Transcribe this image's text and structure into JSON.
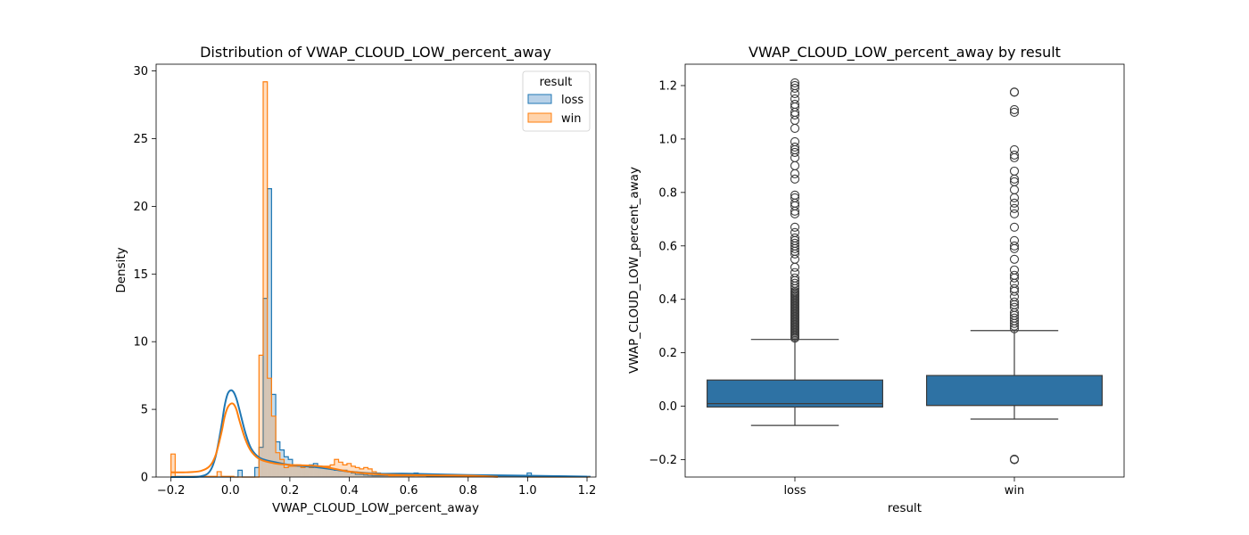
{
  "chart_data": [
    {
      "type": "histogram",
      "title": "Distribution of VWAP_CLOUD_LOW_percent_away",
      "xlabel": "VWAP_CLOUD_LOW_percent_away",
      "ylabel": "Density",
      "xlim": [
        -0.25,
        1.23
      ],
      "ylim": [
        0,
        30.5
      ],
      "xticks": [
        -0.2,
        0.0,
        0.2,
        0.4,
        0.6,
        0.8,
        1.0,
        1.2
      ],
      "xtick_labels": [
        "−0.2",
        "0.0",
        "0.2",
        "0.4",
        "0.6",
        "0.8",
        "1.0",
        "1.2"
      ],
      "yticks": [
        0,
        5,
        10,
        15,
        20,
        25,
        30
      ],
      "ytick_labels": [
        "0",
        "5",
        "10",
        "15",
        "20",
        "25",
        "30"
      ],
      "legend": {
        "title": "result",
        "placement": "upper-right",
        "entries": [
          "loss",
          "win"
        ]
      },
      "bin_width": 0.0141,
      "bin_start": -0.2,
      "series": [
        {
          "name": "loss",
          "color": "#1f77b4",
          "fill": "#b8d1e8",
          "density": [
            0,
            0,
            0,
            0,
            0,
            0,
            0,
            0,
            0,
            0,
            0,
            0,
            0,
            0,
            0,
            0,
            0.5,
            0,
            0,
            0,
            0.7,
            2.2,
            13.2,
            21.3,
            6.1,
            2.6,
            2.0,
            1.5,
            1.3,
            0.8,
            0.8,
            0.8,
            0.8,
            0.9,
            1.0,
            0.8,
            0.7,
            0.7,
            0.6,
            0.5,
            0.5,
            0.5,
            0.4,
            0.3,
            0.2,
            0.2,
            0.15,
            0.12,
            0.1,
            0.1,
            0.1,
            0.1,
            0.1,
            0.1,
            0.1,
            0.1,
            0.1,
            0.1,
            0.3,
            0.1,
            0.1,
            0.05,
            0.05,
            0.05,
            0.05,
            0.05,
            0.05,
            0.05,
            0.05,
            0.05,
            0.05,
            0.05,
            0.05,
            0.05,
            0.05,
            0.05,
            0.05,
            0.05,
            0.05,
            0.05,
            0.05,
            0.05,
            0.05,
            0.05,
            0.05,
            0.3,
            0.05,
            0.05,
            0.05,
            0.05,
            0.05,
            0.05,
            0.05,
            0.05,
            0.05,
            0.05,
            0.05,
            0.05,
            0.05,
            0.05
          ],
          "kde": {
            "x": [
              -0.2,
              -0.15,
              -0.1,
              -0.07,
              -0.05,
              -0.03,
              -0.02,
              -0.01,
              0.0,
              0.01,
              0.02,
              0.03,
              0.05,
              0.07,
              0.1,
              0.15,
              0.2,
              0.3,
              0.4,
              0.5,
              0.6,
              0.8,
              1.0,
              1.2
            ],
            "y": [
              0,
              0,
              0.05,
              0.4,
              1.5,
              3.8,
              5.2,
              6.1,
              6.4,
              6.3,
              5.8,
              5.0,
              3.3,
              2.1,
              1.4,
              1.1,
              0.9,
              0.7,
              0.4,
              0.25,
              0.25,
              0.15,
              0.1,
              0.03
            ]
          }
        },
        {
          "name": "win",
          "color": "#ff7f0e",
          "fill": "#ffd3ab",
          "density": [
            1.7,
            0.05,
            0.05,
            0.05,
            0.05,
            0.05,
            0.05,
            0.05,
            0.05,
            0.05,
            0.05,
            0.4,
            0.05,
            0.05,
            0.05,
            0,
            0,
            0,
            0,
            0,
            0,
            9.0,
            29.2,
            7.3,
            4.5,
            1.8,
            1.3,
            0.7,
            0.8,
            0.8,
            0.9,
            0.7,
            0.8,
            0.7,
            0.8,
            0.7,
            0.8,
            0.8,
            0.9,
            1.3,
            1.1,
            0.9,
            1.0,
            0.8,
            0.7,
            0.6,
            0.7,
            0.6,
            0.4,
            0.3,
            0.2,
            0.15,
            0.1,
            0.1,
            0.1,
            0.1,
            0.1,
            0.1,
            0.1,
            0.1,
            0.1,
            0.1,
            0.1,
            0.1,
            0.1,
            0.1,
            0.1,
            0.1,
            0.1,
            0.1,
            0.1,
            0.1,
            0.1,
            0.1,
            0.1,
            0.1,
            0.1,
            0.1,
            0.1,
            0.1,
            0.1,
            0.1,
            0.1,
            0.1,
            0.1,
            0,
            0,
            0,
            0,
            0,
            0,
            0,
            0,
            0,
            0,
            0,
            0,
            0,
            0,
            0
          ],
          "kde": {
            "x": [
              -0.2,
              -0.15,
              -0.1,
              -0.07,
              -0.05,
              -0.03,
              -0.02,
              -0.01,
              0.0,
              0.01,
              0.02,
              0.03,
              0.05,
              0.07,
              0.1,
              0.15,
              0.2,
              0.3,
              0.4,
              0.5,
              0.6,
              0.8,
              0.9
            ],
            "y": [
              0.35,
              0.35,
              0.45,
              0.8,
              1.6,
              3.3,
              4.4,
              5.1,
              5.4,
              5.4,
              5.0,
              4.2,
              2.8,
              1.9,
              1.3,
              1.0,
              0.9,
              0.8,
              0.4,
              0.2,
              0.15,
              0.1,
              0.02
            ]
          }
        }
      ]
    },
    {
      "type": "box",
      "title": "VWAP_CLOUD_LOW_percent_away by result",
      "xlabel": "result",
      "ylabel": "VWAP_CLOUD_LOW_percent_away",
      "categories": [
        "loss",
        "win"
      ],
      "ylim": [
        -0.265,
        1.28
      ],
      "yticks": [
        -0.2,
        0.0,
        0.2,
        0.4,
        0.6,
        0.8,
        1.0,
        1.2
      ],
      "ytick_labels": [
        "−0.2",
        "0.0",
        "0.2",
        "0.4",
        "0.6",
        "0.8",
        "1.0",
        "1.2"
      ],
      "box_color": "#2e72a4",
      "boxes": [
        {
          "name": "loss",
          "q1": -0.003,
          "median": 0.01,
          "q3": 0.098,
          "whisker_low": -0.072,
          "whisker_high": 0.25,
          "outliers": [
            0.255,
            0.26,
            0.265,
            0.27,
            0.275,
            0.28,
            0.285,
            0.29,
            0.295,
            0.3,
            0.305,
            0.31,
            0.315,
            0.32,
            0.325,
            0.33,
            0.335,
            0.34,
            0.345,
            0.35,
            0.355,
            0.36,
            0.365,
            0.37,
            0.375,
            0.38,
            0.385,
            0.39,
            0.395,
            0.4,
            0.405,
            0.41,
            0.415,
            0.42,
            0.425,
            0.43,
            0.44,
            0.45,
            0.46,
            0.47,
            0.48,
            0.5,
            0.52,
            0.55,
            0.57,
            0.58,
            0.59,
            0.6,
            0.61,
            0.62,
            0.63,
            0.65,
            0.67,
            0.72,
            0.73,
            0.75,
            0.76,
            0.78,
            0.79,
            0.85,
            0.87,
            0.9,
            0.93,
            0.95,
            0.96,
            0.97,
            0.99,
            1.04,
            1.07,
            1.09,
            1.1,
            1.12,
            1.13,
            1.15,
            1.17,
            1.19,
            1.2,
            1.21
          ]
        },
        {
          "name": "win",
          "q1": 0.003,
          "median": 0.003,
          "q3": 0.115,
          "whisker_low": -0.048,
          "whisker_high": 0.283,
          "outliers": [
            -0.198,
            -0.2,
            0.29,
            0.3,
            0.31,
            0.32,
            0.33,
            0.34,
            0.35,
            0.37,
            0.38,
            0.39,
            0.41,
            0.43,
            0.44,
            0.46,
            0.48,
            0.49,
            0.51,
            0.55,
            0.59,
            0.6,
            0.62,
            0.67,
            0.72,
            0.74,
            0.76,
            0.78,
            0.81,
            0.84,
            0.85,
            0.88,
            0.93,
            0.94,
            0.96,
            1.1,
            1.11,
            1.175,
            1.176
          ]
        }
      ]
    }
  ]
}
